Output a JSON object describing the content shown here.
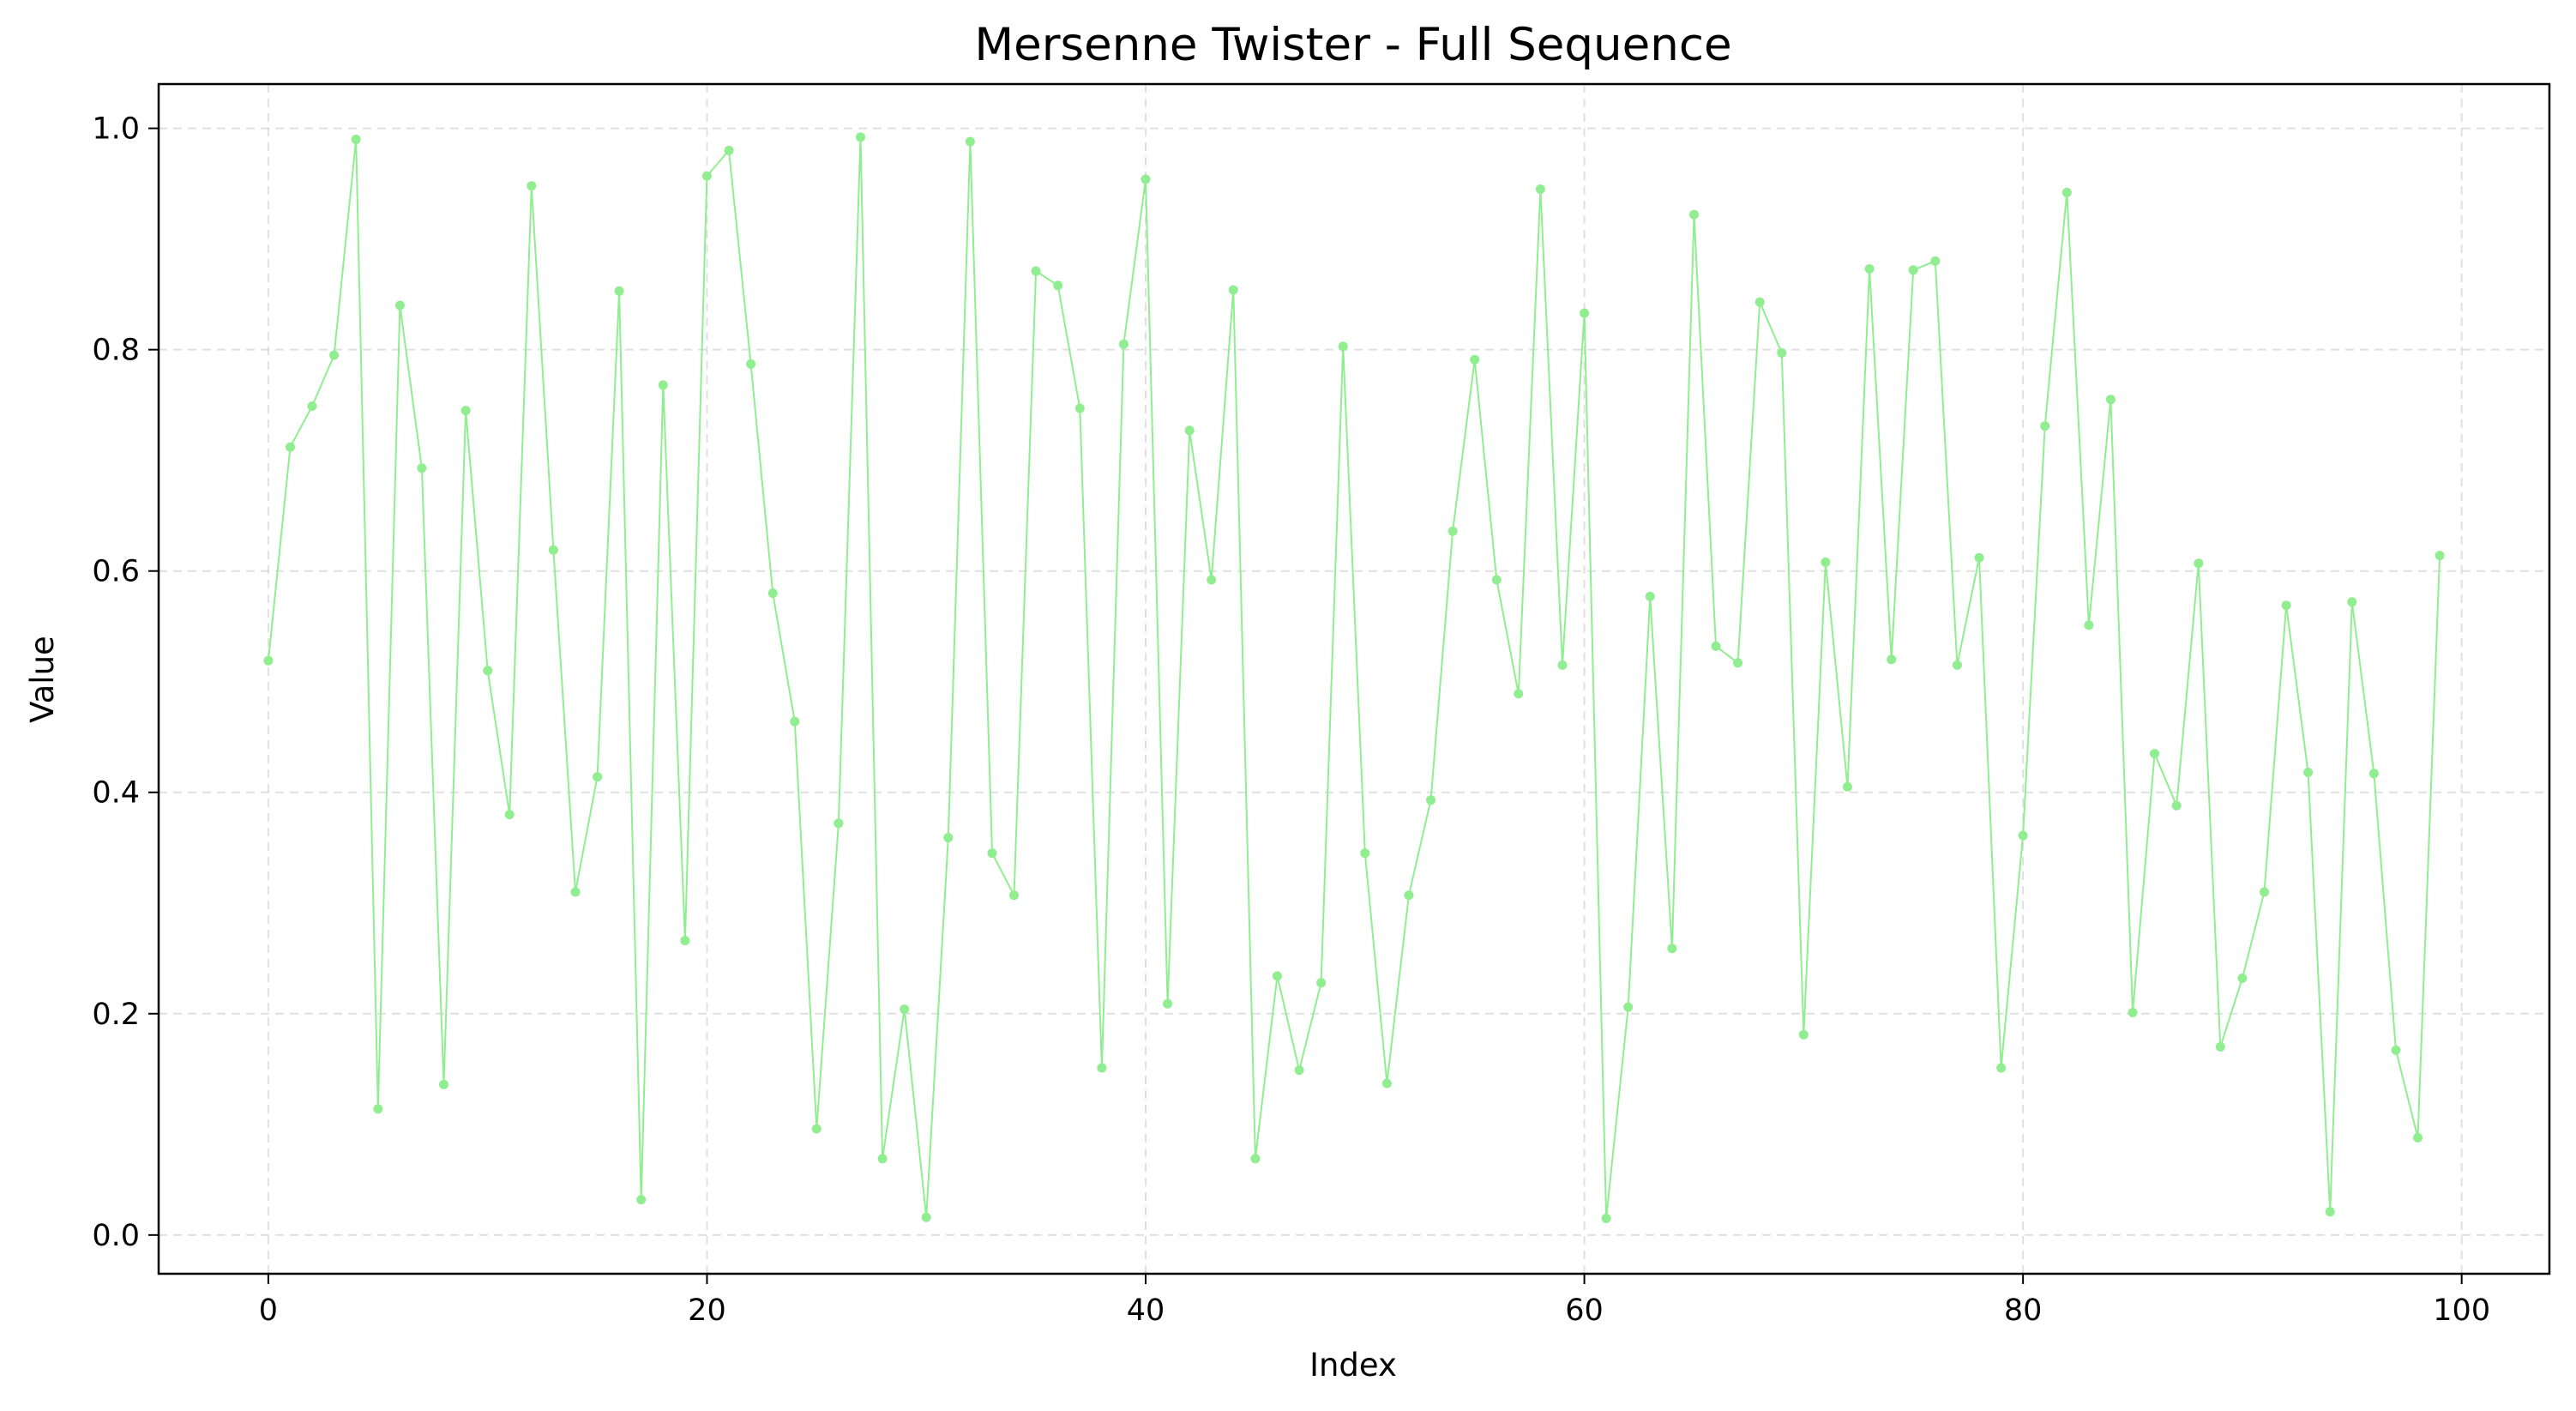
{
  "chart_data": {
    "type": "line",
    "title": "Mersenne Twister - Full Sequence",
    "xlabel": "Index",
    "ylabel": "Value",
    "xlim": [
      -5,
      104
    ],
    "ylim": [
      -0.035,
      1.04
    ],
    "xticks": [
      0,
      20,
      40,
      60,
      80,
      100
    ],
    "xtick_labels": [
      "0",
      "20",
      "40",
      "60",
      "80",
      "100"
    ],
    "yticks": [
      0.0,
      0.2,
      0.4,
      0.6,
      0.8,
      1.0
    ],
    "ytick_labels": [
      "0.0",
      "0.2",
      "0.4",
      "0.6",
      "0.8",
      "1.0"
    ],
    "grid": true,
    "series_color": "#90ee90",
    "series": [
      {
        "x": [
          0,
          1,
          2,
          3,
          4,
          5,
          6,
          7,
          8,
          9,
          10,
          11,
          12,
          13,
          14,
          15,
          16,
          17,
          18,
          19,
          20,
          21,
          22,
          23,
          24,
          25,
          26,
          27,
          28,
          29,
          30,
          31,
          32,
          33,
          34,
          35,
          36,
          37,
          38,
          39,
          40,
          41,
          42,
          43,
          44,
          45,
          46,
          47,
          48,
          49,
          50,
          51,
          52,
          53,
          54,
          55,
          56,
          57,
          58,
          59,
          60,
          61,
          62,
          63,
          64,
          65,
          66,
          67,
          68,
          69,
          70,
          71,
          72,
          73,
          74,
          75,
          76,
          77,
          78,
          79,
          80,
          81,
          82,
          83,
          84,
          85,
          86,
          87,
          88,
          89,
          90,
          91,
          92,
          93,
          94,
          95,
          96,
          97,
          98,
          99
        ],
        "values": [
          0.519,
          0.712,
          0.749,
          0.795,
          0.99,
          0.114,
          0.84,
          0.693,
          0.136,
          0.745,
          0.51,
          0.38,
          0.948,
          0.619,
          0.31,
          0.414,
          0.853,
          0.032,
          0.768,
          0.266,
          0.957,
          0.98,
          0.787,
          0.58,
          0.464,
          0.096,
          0.372,
          0.992,
          0.069,
          0.204,
          0.016,
          0.359,
          0.988,
          0.345,
          0.307,
          0.871,
          0.858,
          0.747,
          0.151,
          0.805,
          0.954,
          0.209,
          0.727,
          0.592,
          0.854,
          0.069,
          0.234,
          0.149,
          0.228,
          0.803,
          0.345,
          0.137,
          0.307,
          0.393,
          0.636,
          0.791,
          0.592,
          0.489,
          0.945,
          0.515,
          0.833,
          0.015,
          0.206,
          0.577,
          0.259,
          0.922,
          0.532,
          0.517,
          0.843,
          0.797,
          0.181,
          0.608,
          0.405,
          0.873,
          0.52,
          0.872,
          0.88,
          0.515,
          0.612,
          0.151,
          0.361,
          0.731,
          0.942,
          0.551,
          0.755,
          0.201,
          0.435,
          0.388,
          0.607,
          0.17,
          0.232,
          0.31,
          0.569,
          0.418,
          0.021,
          0.572,
          0.417,
          0.167,
          0.088,
          0.614
        ]
      }
    ]
  }
}
